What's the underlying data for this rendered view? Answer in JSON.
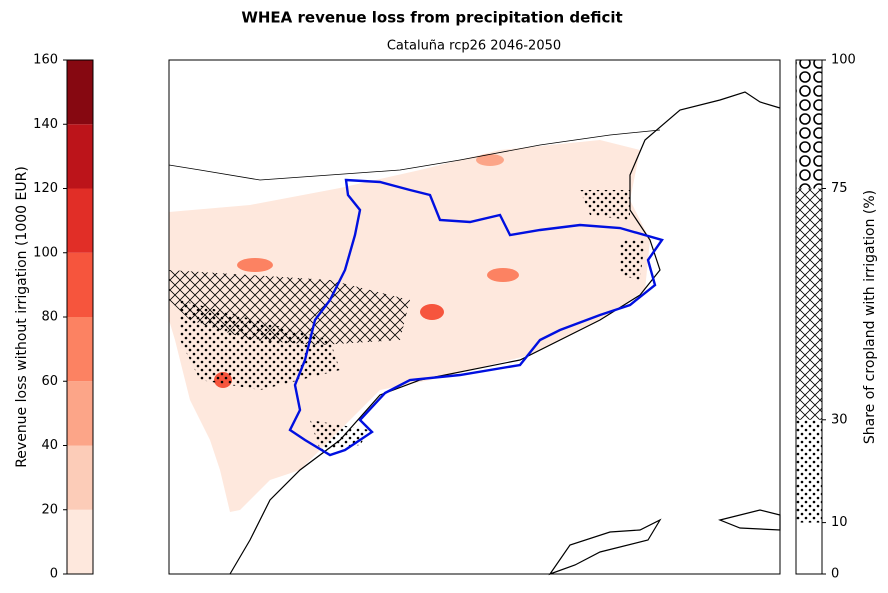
{
  "title": "WHEA revenue loss from precipitation deficit",
  "map": {
    "title": "Cataluña rcp26 2046-2050"
  },
  "colorbar_left": {
    "label": "Revenue loss without irrigation (1000 EUR)",
    "lim": [
      0,
      160
    ],
    "ticks": [
      0,
      20,
      40,
      60,
      80,
      100,
      120,
      140,
      160
    ],
    "colors": [
      "#fee8dd",
      "#fcccb8",
      "#fca588",
      "#fc8262",
      "#f6553d",
      "#e12e27",
      "#bc141a",
      "#860811"
    ]
  },
  "colorbar_right": {
    "label": "Share of cropland with irrigation (%)",
    "lim": [
      0,
      100
    ],
    "ticks": [
      0,
      10,
      30,
      75,
      100
    ],
    "patterns": [
      "none",
      "dots",
      "crosshatch",
      "circles"
    ]
  }
}
